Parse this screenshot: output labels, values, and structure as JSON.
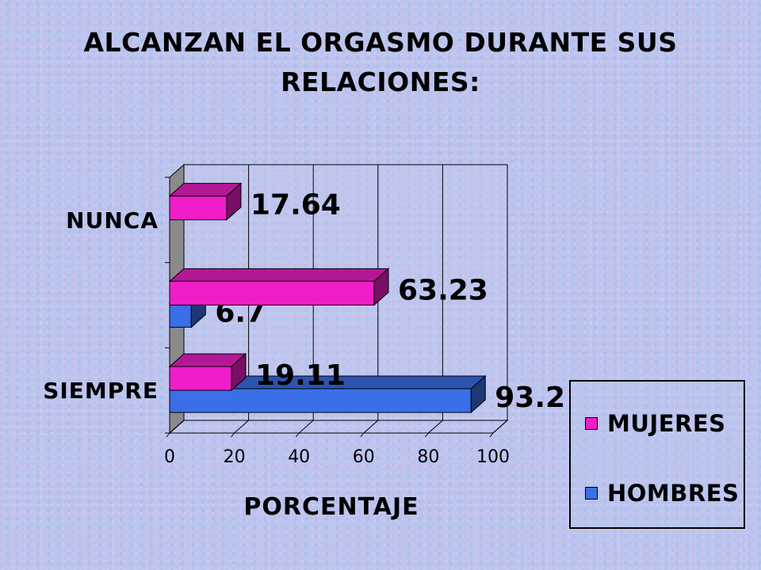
{
  "chart_data": {
    "type": "bar",
    "orientation": "horizontal",
    "title": "ALCANZAN EL ORGASMO DURANTE SUS RELACIONES:",
    "title_lines": [
      "ALCANZAN EL ORGASMO DURANTE SUS",
      "RELACIONES:"
    ],
    "xlabel": "PORCENTAJE",
    "ylabel": "",
    "xlim": [
      0,
      100
    ],
    "x_ticks": [
      "0",
      "20",
      "40",
      "60",
      "80",
      "100"
    ],
    "categories": [
      "SIEMPRE",
      "",
      "NUNCA"
    ],
    "series": [
      {
        "name": "HOMBRES",
        "values": [
          93.2,
          6.7,
          null
        ],
        "labels": [
          "93.2",
          "6.7",
          ""
        ],
        "color": "#3a6fe8"
      },
      {
        "name": "MUJERES",
        "values": [
          19.11,
          63.23,
          17.64
        ],
        "labels": [
          "19.11",
          "63.23",
          "17.64"
        ],
        "color": "#f01ec8"
      }
    ],
    "legend": {
      "placement": "bottom-right",
      "entries": [
        "MUJERES",
        "HOMBRES"
      ]
    },
    "grid": "vertical",
    "style": "3d"
  }
}
